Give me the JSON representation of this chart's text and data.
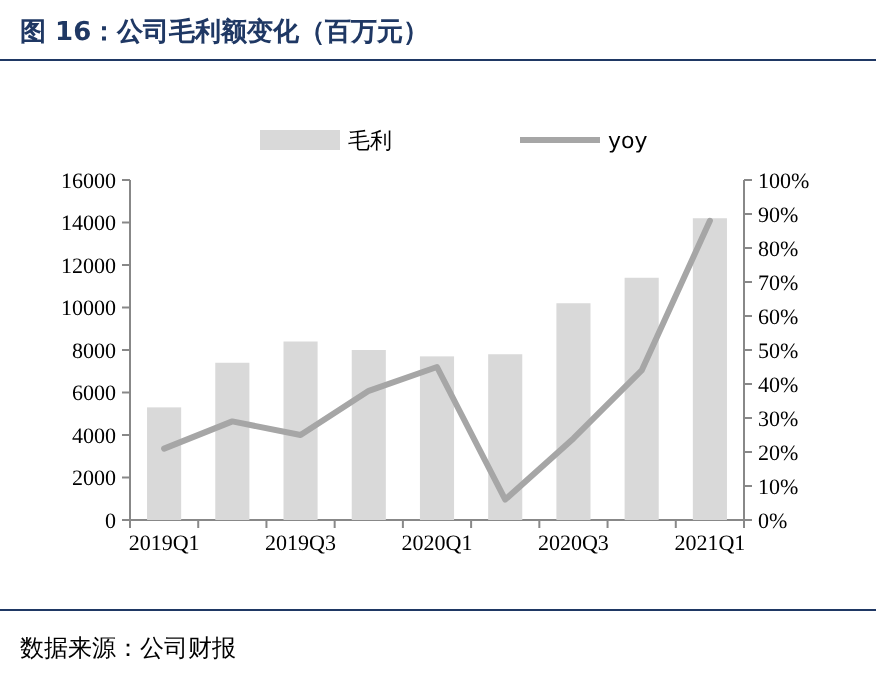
{
  "chart_data": {
    "type": "bar",
    "title": "图 16：公司毛利额变化（百万元）",
    "categories": [
      "2019Q1",
      null,
      "2019Q3",
      null,
      "2020Q1",
      null,
      "2020Q3",
      null,
      "2021Q1"
    ],
    "series": [
      {
        "name": "毛利",
        "color": "#d9d9d9",
        "values": [
          5300,
          7400,
          8400,
          8000,
          7700,
          7800,
          10200,
          11400,
          14200
        ]
      },
      {
        "name": "yoy",
        "type": "line",
        "axis": "y2",
        "color": "#a6a6a6",
        "values": [
          21,
          29,
          25,
          38,
          45,
          6,
          24,
          44,
          88
        ]
      }
    ],
    "ylim": [
      0,
      16000
    ],
    "yticks": [
      0,
      2000,
      4000,
      6000,
      8000,
      10000,
      12000,
      14000,
      16000
    ],
    "y2lim": [
      0,
      100
    ],
    "y2ticks": [
      {
        "value": 0,
        "label": "0%"
      },
      {
        "value": 10,
        "label": "10%"
      },
      {
        "value": 20,
        "label": "20%"
      },
      {
        "value": 30,
        "label": "30%"
      },
      {
        "value": 40,
        "label": "40%"
      },
      {
        "value": 50,
        "label": "50%"
      },
      {
        "value": 60,
        "label": "60%"
      },
      {
        "value": 70,
        "label": "70%"
      },
      {
        "value": 80,
        "label": "80%"
      },
      {
        "value": 90,
        "label": "90%"
      },
      {
        "value": 100,
        "label": "100%"
      }
    ],
    "legend": "top",
    "annotations": [
      "数据来源：公司财报"
    ]
  }
}
